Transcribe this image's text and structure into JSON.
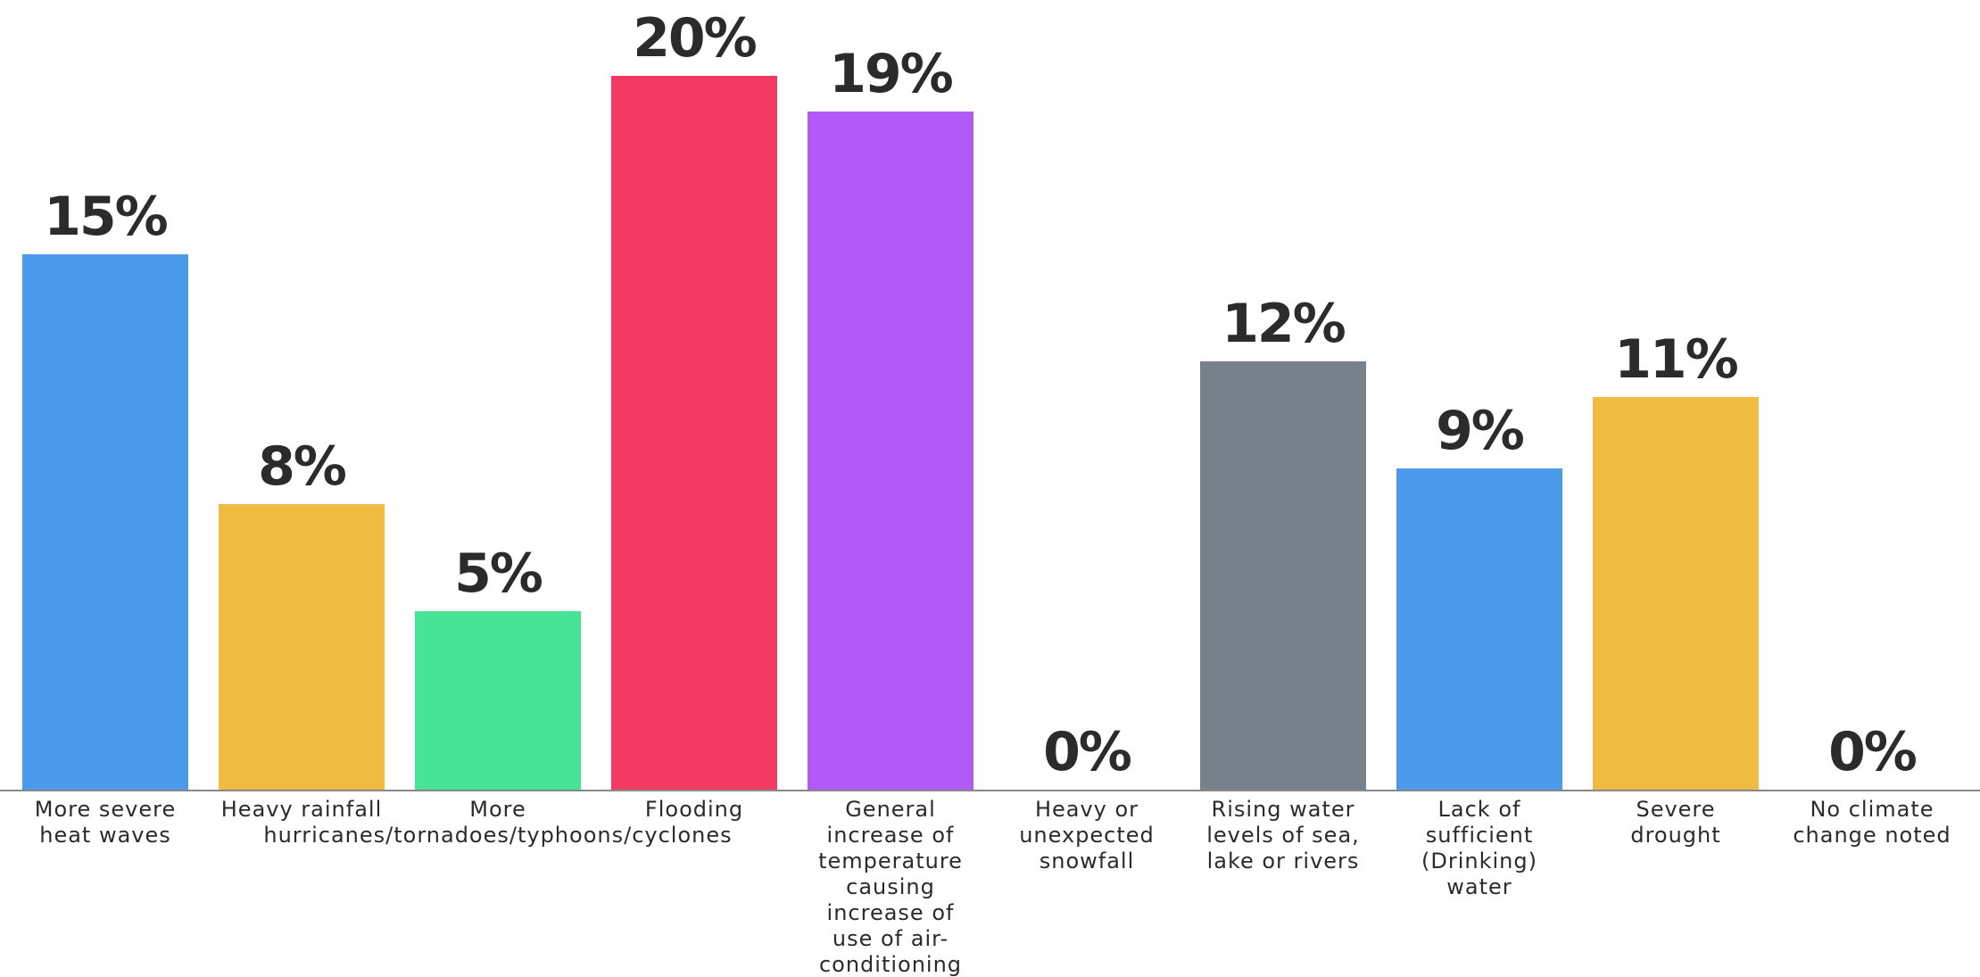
{
  "chart_data": {
    "type": "bar",
    "categories": [
      [
        "More severe",
        "heat waves"
      ],
      [
        "Heavy rainfall"
      ],
      [
        "More",
        "hurricanes/tornadoes/typhoons/cyclones"
      ],
      [
        "Flooding"
      ],
      [
        "General",
        "increase of",
        "temperature",
        "causing",
        "increase of",
        "use of air-",
        "conditioning"
      ],
      [
        "Heavy or",
        "unexpected",
        "snowfall"
      ],
      [
        "Rising water",
        "levels of sea,",
        "lake or rivers"
      ],
      [
        "Lack of",
        "sufficient",
        "(Drinking)",
        "water"
      ],
      [
        "Severe",
        "drought"
      ],
      [
        "No climate",
        "change noted"
      ]
    ],
    "values": [
      15,
      8,
      5,
      20,
      19,
      0,
      12,
      9,
      11,
      0
    ],
    "value_labels": [
      "15%",
      "8%",
      "5%",
      "20%",
      "19%",
      "0%",
      "12%",
      "9%",
      "11%",
      "0%"
    ],
    "colors": [
      "#4C9AEB",
      "#EFBB40",
      "#47E396",
      "#F23A64",
      "#B15AF7",
      "#4C9AEB",
      "#77818C",
      "#4C9AEB",
      "#EFBB40",
      "#4C9AEB"
    ],
    "ylim": [
      0,
      20
    ],
    "title": "",
    "xlabel": "",
    "ylabel": "",
    "grid": false,
    "legend": "none"
  }
}
